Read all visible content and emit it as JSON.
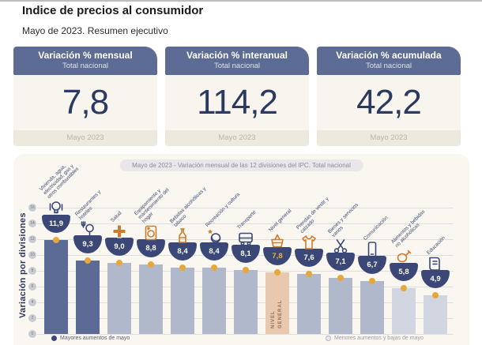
{
  "page": {
    "title": "Indice de precios al consumidor",
    "subtitle": "Mayo de 2023. Resumen ejecutivo"
  },
  "cards": [
    {
      "title": "Variación % mensual",
      "subtitle": "Total nacional",
      "value": "7,8",
      "period": "Mayo 2023"
    },
    {
      "title": "Variación % interanual",
      "subtitle": "Total nacional",
      "value": "114,2",
      "period": "Mayo 2023"
    },
    {
      "title": "Variación % acumulada",
      "subtitle": "Total nacional",
      "value": "42,2",
      "period": "Mayo 2023"
    }
  ],
  "chart_data": {
    "type": "bar",
    "title": "Mayo de 2023 - Variación mensual de las 12 divisiones del IPC. Total nacional",
    "ylabel": "Variación por divisiones",
    "ylim": [
      0,
      16
    ],
    "yticks": [
      0,
      2,
      4,
      6,
      8,
      10,
      12,
      14,
      16
    ],
    "grid": true,
    "categories": [
      "Vivienda, agua, electricidad, gas y otros combustibles",
      "Restaurantes y hoteles",
      "Salud",
      "Equipamiento y mantenimiento del hogar",
      "Bebidas alcohólicas y tabaco",
      "Recreación y cultura",
      "Transporte",
      "Nivel general",
      "Prendas de vestir y calzado",
      "Bienes y servicios varios",
      "Comunicación",
      "Alimentos y bebidas no alcohólicas",
      "Educación"
    ],
    "values": [
      11.9,
      9.3,
      9.0,
      8.8,
      8.4,
      8.4,
      8.1,
      7.8,
      7.6,
      7.1,
      6.7,
      5.8,
      4.9
    ],
    "value_labels": [
      "11,9",
      "9,3",
      "9,0",
      "8,8",
      "8,4",
      "8,4",
      "8,1",
      "7,8",
      "7,6",
      "7,1",
      "6,7",
      "5,8",
      "4,9"
    ],
    "groups": [
      "max",
      "max",
      "mid",
      "mid",
      "mid",
      "mid",
      "mid",
      "general",
      "mid",
      "mid",
      "mid",
      "min",
      "min"
    ],
    "highlight_index": 7,
    "highlight_bar_text": "NIVEL GENERAL",
    "icons": [
      "housing-utilities-icon",
      "restaurants-hotels-icon",
      "health-icon",
      "home-equipment-icon",
      "alcohol-tobacco-icon",
      "recreation-culture-icon",
      "transport-icon",
      "basket-icon",
      "clothing-icon",
      "misc-goods-icon",
      "communication-icon",
      "food-beverages-icon",
      "education-icon"
    ],
    "legend": [
      {
        "marker": "filled",
        "label": "Mayores aumentos de mayo"
      },
      {
        "marker": "open",
        "label": "Menores aumentos y bajas de mayo"
      }
    ],
    "legend_position": "bottom",
    "colors": {
      "max": "#5b6b96",
      "mid": "#afb9cb",
      "min": "#d0d5df",
      "general": "#e9c9ae",
      "dot": "#e7a83b",
      "bowl": "#3b4877",
      "accent_orange": "#cf7a30",
      "accent_navy": "#3b4877"
    }
  }
}
